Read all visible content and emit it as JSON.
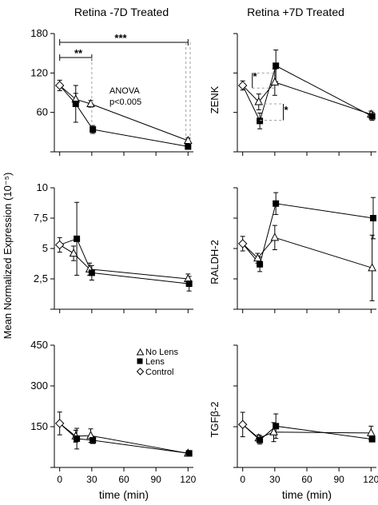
{
  "figure": {
    "column_titles": [
      "Retina -7D Treated",
      "Retina +7D Treated"
    ],
    "shared_ylabel": "Mean Normalized Expression (10⁻⁵)",
    "row_labels": [
      "ZENK",
      "RALDH-2",
      "TGFβ-2"
    ],
    "legend": [
      {
        "marker": "open-triangle",
        "label": "No Lens"
      },
      {
        "marker": "filled-square",
        "label": "Lens"
      },
      {
        "marker": "open-diamond",
        "label": "Control"
      }
    ],
    "annotations": {
      "anova_line1": "ANOVA",
      "anova_line2": "p<0.005",
      "sig_2star": "**",
      "sig_3star": "***",
      "sig_1star": "*"
    },
    "colors": {
      "ink": "#000000",
      "guide": "#a0a0a0"
    }
  },
  "chart_data": [
    {
      "type": "line",
      "panel": "Retina -7D Treated / ZENK",
      "xlabel": "",
      "ylabel": "",
      "xlim": [
        -5,
        125
      ],
      "ylim": [
        0,
        180
      ],
      "xticks": [
        0,
        30,
        60,
        90,
        120
      ],
      "yticks": [
        0,
        60,
        120,
        180
      ],
      "ytick_labels": [
        "",
        "60",
        "120",
        "180"
      ],
      "series": [
        {
          "name": "No Lens",
          "marker": "open-triangle",
          "x": [
            15,
            29,
            120
          ],
          "y": [
            80,
            73,
            17
          ],
          "err": [
            9,
            5,
            4
          ]
        },
        {
          "name": "Lens",
          "marker": "filled-square",
          "x": [
            15,
            31,
            120
          ],
          "y": [
            73,
            34,
            8
          ],
          "err": [
            28,
            6,
            3
          ]
        },
        {
          "name": "Control",
          "marker": "open-diamond",
          "x": [
            0
          ],
          "y": [
            101
          ],
          "err": [
            8
          ]
        }
      ]
    },
    {
      "type": "line",
      "panel": "Retina +7D Treated / ZENK",
      "xlabel": "",
      "ylabel": "ZENK",
      "xlim": [
        -5,
        125
      ],
      "ylim": [
        0,
        180
      ],
      "xticks": [
        0,
        30,
        60,
        90,
        120
      ],
      "yticks": [
        0,
        60,
        120,
        180
      ],
      "ytick_labels": [
        "",
        "",
        "",
        ""
      ],
      "series": [
        {
          "name": "No Lens",
          "marker": "open-triangle",
          "x": [
            15,
            30,
            120
          ],
          "y": [
            76,
            106,
            57
          ],
          "err": [
            12,
            20,
            5
          ]
        },
        {
          "name": "Lens",
          "marker": "filled-square",
          "x": [
            16,
            31,
            121
          ],
          "y": [
            47,
            131,
            54
          ],
          "err": [
            12,
            24,
            6
          ]
        },
        {
          "name": "Control",
          "marker": "open-diamond",
          "x": [
            0
          ],
          "y": [
            101
          ],
          "err": [
            7
          ]
        }
      ]
    },
    {
      "type": "line",
      "panel": "Retina -7D Treated / RALDH-2",
      "xlabel": "",
      "ylabel": "",
      "xlim": [
        -5,
        125
      ],
      "ylim": [
        0,
        10
      ],
      "xticks": [
        0,
        30,
        60,
        90,
        120
      ],
      "yticks": [
        0,
        2.5,
        5,
        7.5,
        10
      ],
      "ytick_labels": [
        "",
        "2,5",
        "5",
        "7,5",
        "10"
      ],
      "series": [
        {
          "name": "No Lens",
          "marker": "open-triangle",
          "x": [
            13,
            28,
            120
          ],
          "y": [
            4.6,
            3.3,
            2.5
          ],
          "err": [
            0.6,
            0.5,
            0.4
          ]
        },
        {
          "name": "Lens",
          "marker": "filled-square",
          "x": [
            16,
            30,
            121
          ],
          "y": [
            5.8,
            3.0,
            2.1
          ],
          "err": [
            3.0,
            0.6,
            0.6
          ]
        },
        {
          "name": "Control",
          "marker": "open-diamond",
          "x": [
            0
          ],
          "y": [
            5.3
          ],
          "err": [
            0.6
          ]
        }
      ]
    },
    {
      "type": "line",
      "panel": "Retina +7D Treated / RALDH-2",
      "xlabel": "",
      "ylabel": "RALDH-2",
      "xlim": [
        -5,
        125
      ],
      "ylim": [
        0,
        10
      ],
      "xticks": [
        0,
        30,
        60,
        90,
        120
      ],
      "yticks": [
        0,
        2.5,
        5,
        7.5,
        10
      ],
      "ytick_labels": [
        "",
        "",
        "",
        "",
        ""
      ],
      "series": [
        {
          "name": "No Lens",
          "marker": "open-triangle",
          "x": [
            14,
            30,
            121
          ],
          "y": [
            4.2,
            5.9,
            3.4
          ],
          "err": [
            0.4,
            1.0,
            2.7
          ]
        },
        {
          "name": "Lens",
          "marker": "filled-square",
          "x": [
            16,
            31,
            122
          ],
          "y": [
            3.7,
            8.7,
            7.5
          ],
          "err": [
            0.6,
            0.9,
            1.7
          ]
        },
        {
          "name": "Control",
          "marker": "open-diamond",
          "x": [
            0
          ],
          "y": [
            5.4
          ],
          "err": [
            0.6
          ]
        }
      ]
    },
    {
      "type": "line",
      "panel": "Retina -7D Treated / TGFβ-2",
      "xlabel": "time (min)",
      "ylabel": "",
      "xlim": [
        -5,
        125
      ],
      "ylim": [
        0,
        450
      ],
      "xticks": [
        0,
        30,
        60,
        90,
        120
      ],
      "yticks": [
        0,
        150,
        300,
        450
      ],
      "ytick_labels": [
        "",
        "150",
        "300",
        "450"
      ],
      "xtick_labels": [
        "0",
        "30",
        "60",
        "90",
        "120"
      ],
      "series": [
        {
          "name": "No Lens",
          "marker": "open-triangle",
          "x": [
            15,
            29,
            120
          ],
          "y": [
            115,
            117,
            52
          ],
          "err": [
            22,
            25,
            5
          ]
        },
        {
          "name": "Lens",
          "marker": "filled-square",
          "x": [
            16,
            31,
            121
          ],
          "y": [
            106,
            100,
            52
          ],
          "err": [
            38,
            12,
            6
          ]
        },
        {
          "name": "Control",
          "marker": "open-diamond",
          "x": [
            0
          ],
          "y": [
            162
          ],
          "err": [
            42
          ]
        }
      ]
    },
    {
      "type": "line",
      "panel": "Retina +7D Treated / TGFβ-2",
      "xlabel": "time (min)",
      "ylabel": "TGFβ-2",
      "xlim": [
        -5,
        125
      ],
      "ylim": [
        0,
        450
      ],
      "xticks": [
        0,
        30,
        60,
        90,
        120
      ],
      "yticks": [
        0,
        150,
        300,
        450
      ],
      "ytick_labels": [
        "",
        "",
        "",
        ""
      ],
      "xtick_labels": [
        "0",
        "30",
        "60",
        "90",
        "120"
      ],
      "series": [
        {
          "name": "No Lens",
          "marker": "open-triangle",
          "x": [
            15,
            29,
            120
          ],
          "y": [
            108,
            130,
            127
          ],
          "err": [
            12,
            35,
            25
          ]
        },
        {
          "name": "Lens",
          "marker": "filled-square",
          "x": [
            16,
            31,
            121
          ],
          "y": [
            101,
            152,
            104
          ],
          "err": [
            15,
            45,
            10
          ]
        },
        {
          "name": "Control",
          "marker": "open-diamond",
          "x": [
            0
          ],
          "y": [
            158
          ],
          "err": [
            45
          ]
        }
      ]
    }
  ]
}
